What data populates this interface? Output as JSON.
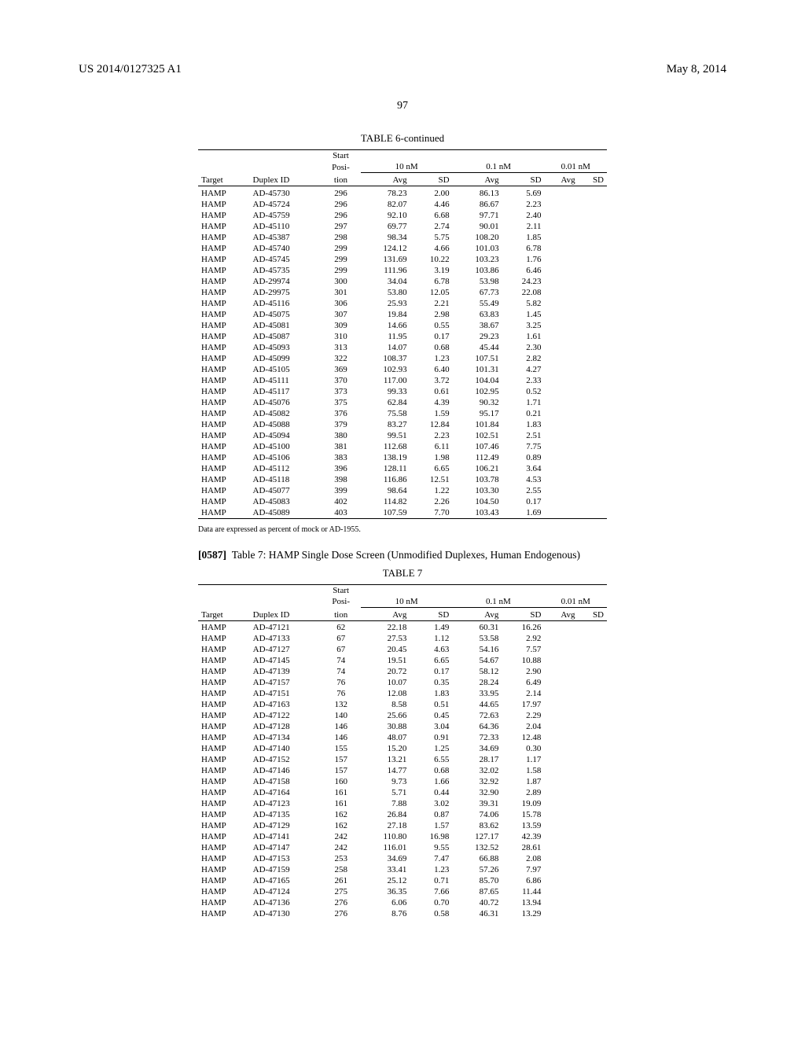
{
  "header": {
    "left": "US 2014/0127325 A1",
    "right": "May 8, 2014"
  },
  "page_number": "97",
  "table6": {
    "title": "TABLE 6-continued",
    "columns": {
      "target": "Target",
      "duplex": "Duplex ID",
      "start_top": "Start",
      "start_mid": "Posi-",
      "start_bot": "tion",
      "c10": "10 nM",
      "c01": "0.1 nM",
      "c001": "0.01 nM",
      "avg": "Avg",
      "sd": "SD"
    },
    "rows": [
      [
        "HAMP",
        "AD-45730",
        "296",
        "78.23",
        "2.00",
        "86.13",
        "5.69",
        "",
        ""
      ],
      [
        "HAMP",
        "AD-45724",
        "296",
        "82.07",
        "4.46",
        "86.67",
        "2.23",
        "",
        ""
      ],
      [
        "HAMP",
        "AD-45759",
        "296",
        "92.10",
        "6.68",
        "97.71",
        "2.40",
        "",
        ""
      ],
      [
        "HAMP",
        "AD-45110",
        "297",
        "69.77",
        "2.74",
        "90.01",
        "2.11",
        "",
        ""
      ],
      [
        "HAMP",
        "AD-45387",
        "298",
        "98.34",
        "5.75",
        "108.20",
        "1.85",
        "",
        ""
      ],
      [
        "HAMP",
        "AD-45740",
        "299",
        "124.12",
        "4.66",
        "101.03",
        "6.78",
        "",
        ""
      ],
      [
        "HAMP",
        "AD-45745",
        "299",
        "131.69",
        "10.22",
        "103.23",
        "1.76",
        "",
        ""
      ],
      [
        "HAMP",
        "AD-45735",
        "299",
        "111.96",
        "3.19",
        "103.86",
        "6.46",
        "",
        ""
      ],
      [
        "HAMP",
        "AD-29974",
        "300",
        "34.04",
        "6.78",
        "53.98",
        "24.23",
        "",
        ""
      ],
      [
        "HAMP",
        "AD-29975",
        "301",
        "53.80",
        "12.05",
        "67.73",
        "22.08",
        "",
        ""
      ],
      [
        "HAMP",
        "AD-45116",
        "306",
        "25.93",
        "2.21",
        "55.49",
        "5.82",
        "",
        ""
      ],
      [
        "HAMP",
        "AD-45075",
        "307",
        "19.84",
        "2.98",
        "63.83",
        "1.45",
        "",
        ""
      ],
      [
        "HAMP",
        "AD-45081",
        "309",
        "14.66",
        "0.55",
        "38.67",
        "3.25",
        "",
        ""
      ],
      [
        "HAMP",
        "AD-45087",
        "310",
        "11.95",
        "0.17",
        "29.23",
        "1.61",
        "",
        ""
      ],
      [
        "HAMP",
        "AD-45093",
        "313",
        "14.07",
        "0.68",
        "45.44",
        "2.30",
        "",
        ""
      ],
      [
        "HAMP",
        "AD-45099",
        "322",
        "108.37",
        "1.23",
        "107.51",
        "2.82",
        "",
        ""
      ],
      [
        "HAMP",
        "AD-45105",
        "369",
        "102.93",
        "6.40",
        "101.31",
        "4.27",
        "",
        ""
      ],
      [
        "HAMP",
        "AD-45111",
        "370",
        "117.00",
        "3.72",
        "104.04",
        "2.33",
        "",
        ""
      ],
      [
        "HAMP",
        "AD-45117",
        "373",
        "99.33",
        "0.61",
        "102.95",
        "0.52",
        "",
        ""
      ],
      [
        "HAMP",
        "AD-45076",
        "375",
        "62.84",
        "4.39",
        "90.32",
        "1.71",
        "",
        ""
      ],
      [
        "HAMP",
        "AD-45082",
        "376",
        "75.58",
        "1.59",
        "95.17",
        "0.21",
        "",
        ""
      ],
      [
        "HAMP",
        "AD-45088",
        "379",
        "83.27",
        "12.84",
        "101.84",
        "1.83",
        "",
        ""
      ],
      [
        "HAMP",
        "AD-45094",
        "380",
        "99.51",
        "2.23",
        "102.51",
        "2.51",
        "",
        ""
      ],
      [
        "HAMP",
        "AD-45100",
        "381",
        "112.68",
        "6.11",
        "107.46",
        "7.75",
        "",
        ""
      ],
      [
        "HAMP",
        "AD-45106",
        "383",
        "138.19",
        "1.98",
        "112.49",
        "0.89",
        "",
        ""
      ],
      [
        "HAMP",
        "AD-45112",
        "396",
        "128.11",
        "6.65",
        "106.21",
        "3.64",
        "",
        ""
      ],
      [
        "HAMP",
        "AD-45118",
        "398",
        "116.86",
        "12.51",
        "103.78",
        "4.53",
        "",
        ""
      ],
      [
        "HAMP",
        "AD-45077",
        "399",
        "98.64",
        "1.22",
        "103.30",
        "2.55",
        "",
        ""
      ],
      [
        "HAMP",
        "AD-45083",
        "402",
        "114.82",
        "2.26",
        "104.50",
        "0.17",
        "",
        ""
      ],
      [
        "HAMP",
        "AD-45089",
        "403",
        "107.59",
        "7.70",
        "103.43",
        "1.69",
        "",
        ""
      ]
    ],
    "footnote": "Data are expressed as percent of mock or AD-1955."
  },
  "para": {
    "num": "[0587]",
    "text": "Table 7: HAMP Single Dose Screen (Unmodified Duplexes, Human Endogenous)"
  },
  "table7": {
    "title": "TABLE 7",
    "columns": {
      "target": "Target",
      "duplex": "Duplex ID",
      "start_top": "Start",
      "start_mid": "Posi-",
      "start_bot": "tion",
      "c10": "10 nM",
      "c01": "0.1 nM",
      "c001": "0.01 nM",
      "avg": "Avg",
      "sd": "SD"
    },
    "rows": [
      [
        "HAMP",
        "AD-47121",
        "62",
        "22.18",
        "1.49",
        "60.31",
        "16.26",
        "",
        ""
      ],
      [
        "HAMP",
        "AD-47133",
        "67",
        "27.53",
        "1.12",
        "53.58",
        "2.92",
        "",
        ""
      ],
      [
        "HAMP",
        "AD-47127",
        "67",
        "20.45",
        "4.63",
        "54.16",
        "7.57",
        "",
        ""
      ],
      [
        "HAMP",
        "AD-47145",
        "74",
        "19.51",
        "6.65",
        "54.67",
        "10.88",
        "",
        ""
      ],
      [
        "HAMP",
        "AD-47139",
        "74",
        "20.72",
        "0.17",
        "58.12",
        "2.90",
        "",
        ""
      ],
      [
        "HAMP",
        "AD-47157",
        "76",
        "10.07",
        "0.35",
        "28.24",
        "6.49",
        "",
        ""
      ],
      [
        "HAMP",
        "AD-47151",
        "76",
        "12.08",
        "1.83",
        "33.95",
        "2.14",
        "",
        ""
      ],
      [
        "HAMP",
        "AD-47163",
        "132",
        "8.58",
        "0.51",
        "44.65",
        "17.97",
        "",
        ""
      ],
      [
        "HAMP",
        "AD-47122",
        "140",
        "25.66",
        "0.45",
        "72.63",
        "2.29",
        "",
        ""
      ],
      [
        "HAMP",
        "AD-47128",
        "146",
        "30.88",
        "3.04",
        "64.36",
        "2.04",
        "",
        ""
      ],
      [
        "HAMP",
        "AD-47134",
        "146",
        "48.07",
        "0.91",
        "72.33",
        "12.48",
        "",
        ""
      ],
      [
        "HAMP",
        "AD-47140",
        "155",
        "15.20",
        "1.25",
        "34.69",
        "0.30",
        "",
        ""
      ],
      [
        "HAMP",
        "AD-47152",
        "157",
        "13.21",
        "6.55",
        "28.17",
        "1.17",
        "",
        ""
      ],
      [
        "HAMP",
        "AD-47146",
        "157",
        "14.77",
        "0.68",
        "32.02",
        "1.58",
        "",
        ""
      ],
      [
        "HAMP",
        "AD-47158",
        "160",
        "9.73",
        "1.66",
        "32.92",
        "1.87",
        "",
        ""
      ],
      [
        "HAMP",
        "AD-47164",
        "161",
        "5.71",
        "0.44",
        "32.90",
        "2.89",
        "",
        ""
      ],
      [
        "HAMP",
        "AD-47123",
        "161",
        "7.88",
        "3.02",
        "39.31",
        "19.09",
        "",
        ""
      ],
      [
        "HAMP",
        "AD-47135",
        "162",
        "26.84",
        "0.87",
        "74.06",
        "15.78",
        "",
        ""
      ],
      [
        "HAMP",
        "AD-47129",
        "162",
        "27.18",
        "1.57",
        "83.62",
        "13.59",
        "",
        ""
      ],
      [
        "HAMP",
        "AD-47141",
        "242",
        "110.80",
        "16.98",
        "127.17",
        "42.39",
        "",
        ""
      ],
      [
        "HAMP",
        "AD-47147",
        "242",
        "116.01",
        "9.55",
        "132.52",
        "28.61",
        "",
        ""
      ],
      [
        "HAMP",
        "AD-47153",
        "253",
        "34.69",
        "7.47",
        "66.88",
        "2.08",
        "",
        ""
      ],
      [
        "HAMP",
        "AD-47159",
        "258",
        "33.41",
        "1.23",
        "57.26",
        "7.97",
        "",
        ""
      ],
      [
        "HAMP",
        "AD-47165",
        "261",
        "25.12",
        "0.71",
        "85.70",
        "6.86",
        "",
        ""
      ],
      [
        "HAMP",
        "AD-47124",
        "275",
        "36.35",
        "7.66",
        "87.65",
        "11.44",
        "",
        ""
      ],
      [
        "HAMP",
        "AD-47136",
        "276",
        "6.06",
        "0.70",
        "40.72",
        "13.94",
        "",
        ""
      ],
      [
        "HAMP",
        "AD-47130",
        "276",
        "8.76",
        "0.58",
        "46.31",
        "13.29",
        "",
        ""
      ]
    ]
  }
}
